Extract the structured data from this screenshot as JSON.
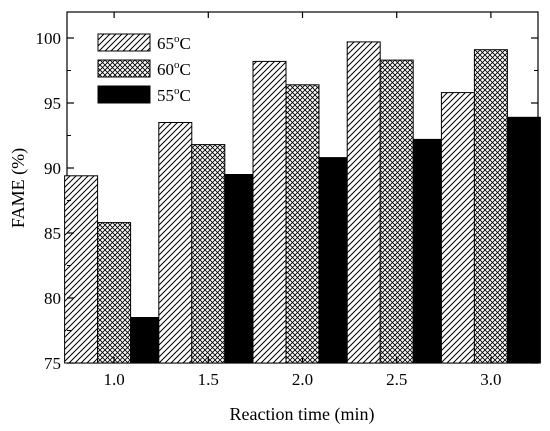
{
  "chart_data": {
    "type": "bar",
    "title": "",
    "xlabel": "Reaction time (min)",
    "ylabel": "FAME (%)",
    "categories": [
      "1.0",
      "1.5",
      "2.0",
      "2.5",
      "3.0"
    ],
    "ylim": [
      75,
      102
    ],
    "yticks": [
      "75",
      "80",
      "85",
      "90",
      "95",
      "100"
    ],
    "grid": false,
    "legend_position": "top-left",
    "series": [
      {
        "name": "65",
        "unit_sup": "o",
        "unit": "C",
        "pattern": "diagonal-hatch",
        "values": [
          89.4,
          93.5,
          98.2,
          99.7,
          95.8
        ]
      },
      {
        "name": "60",
        "unit_sup": "o",
        "unit": "C",
        "pattern": "crosshatch",
        "values": [
          85.8,
          91.8,
          96.4,
          98.3,
          99.1
        ]
      },
      {
        "name": "55",
        "unit_sup": "o",
        "unit": "C",
        "pattern": "solid-black",
        "values": [
          78.5,
          89.5,
          90.8,
          92.2,
          93.9
        ]
      }
    ]
  }
}
